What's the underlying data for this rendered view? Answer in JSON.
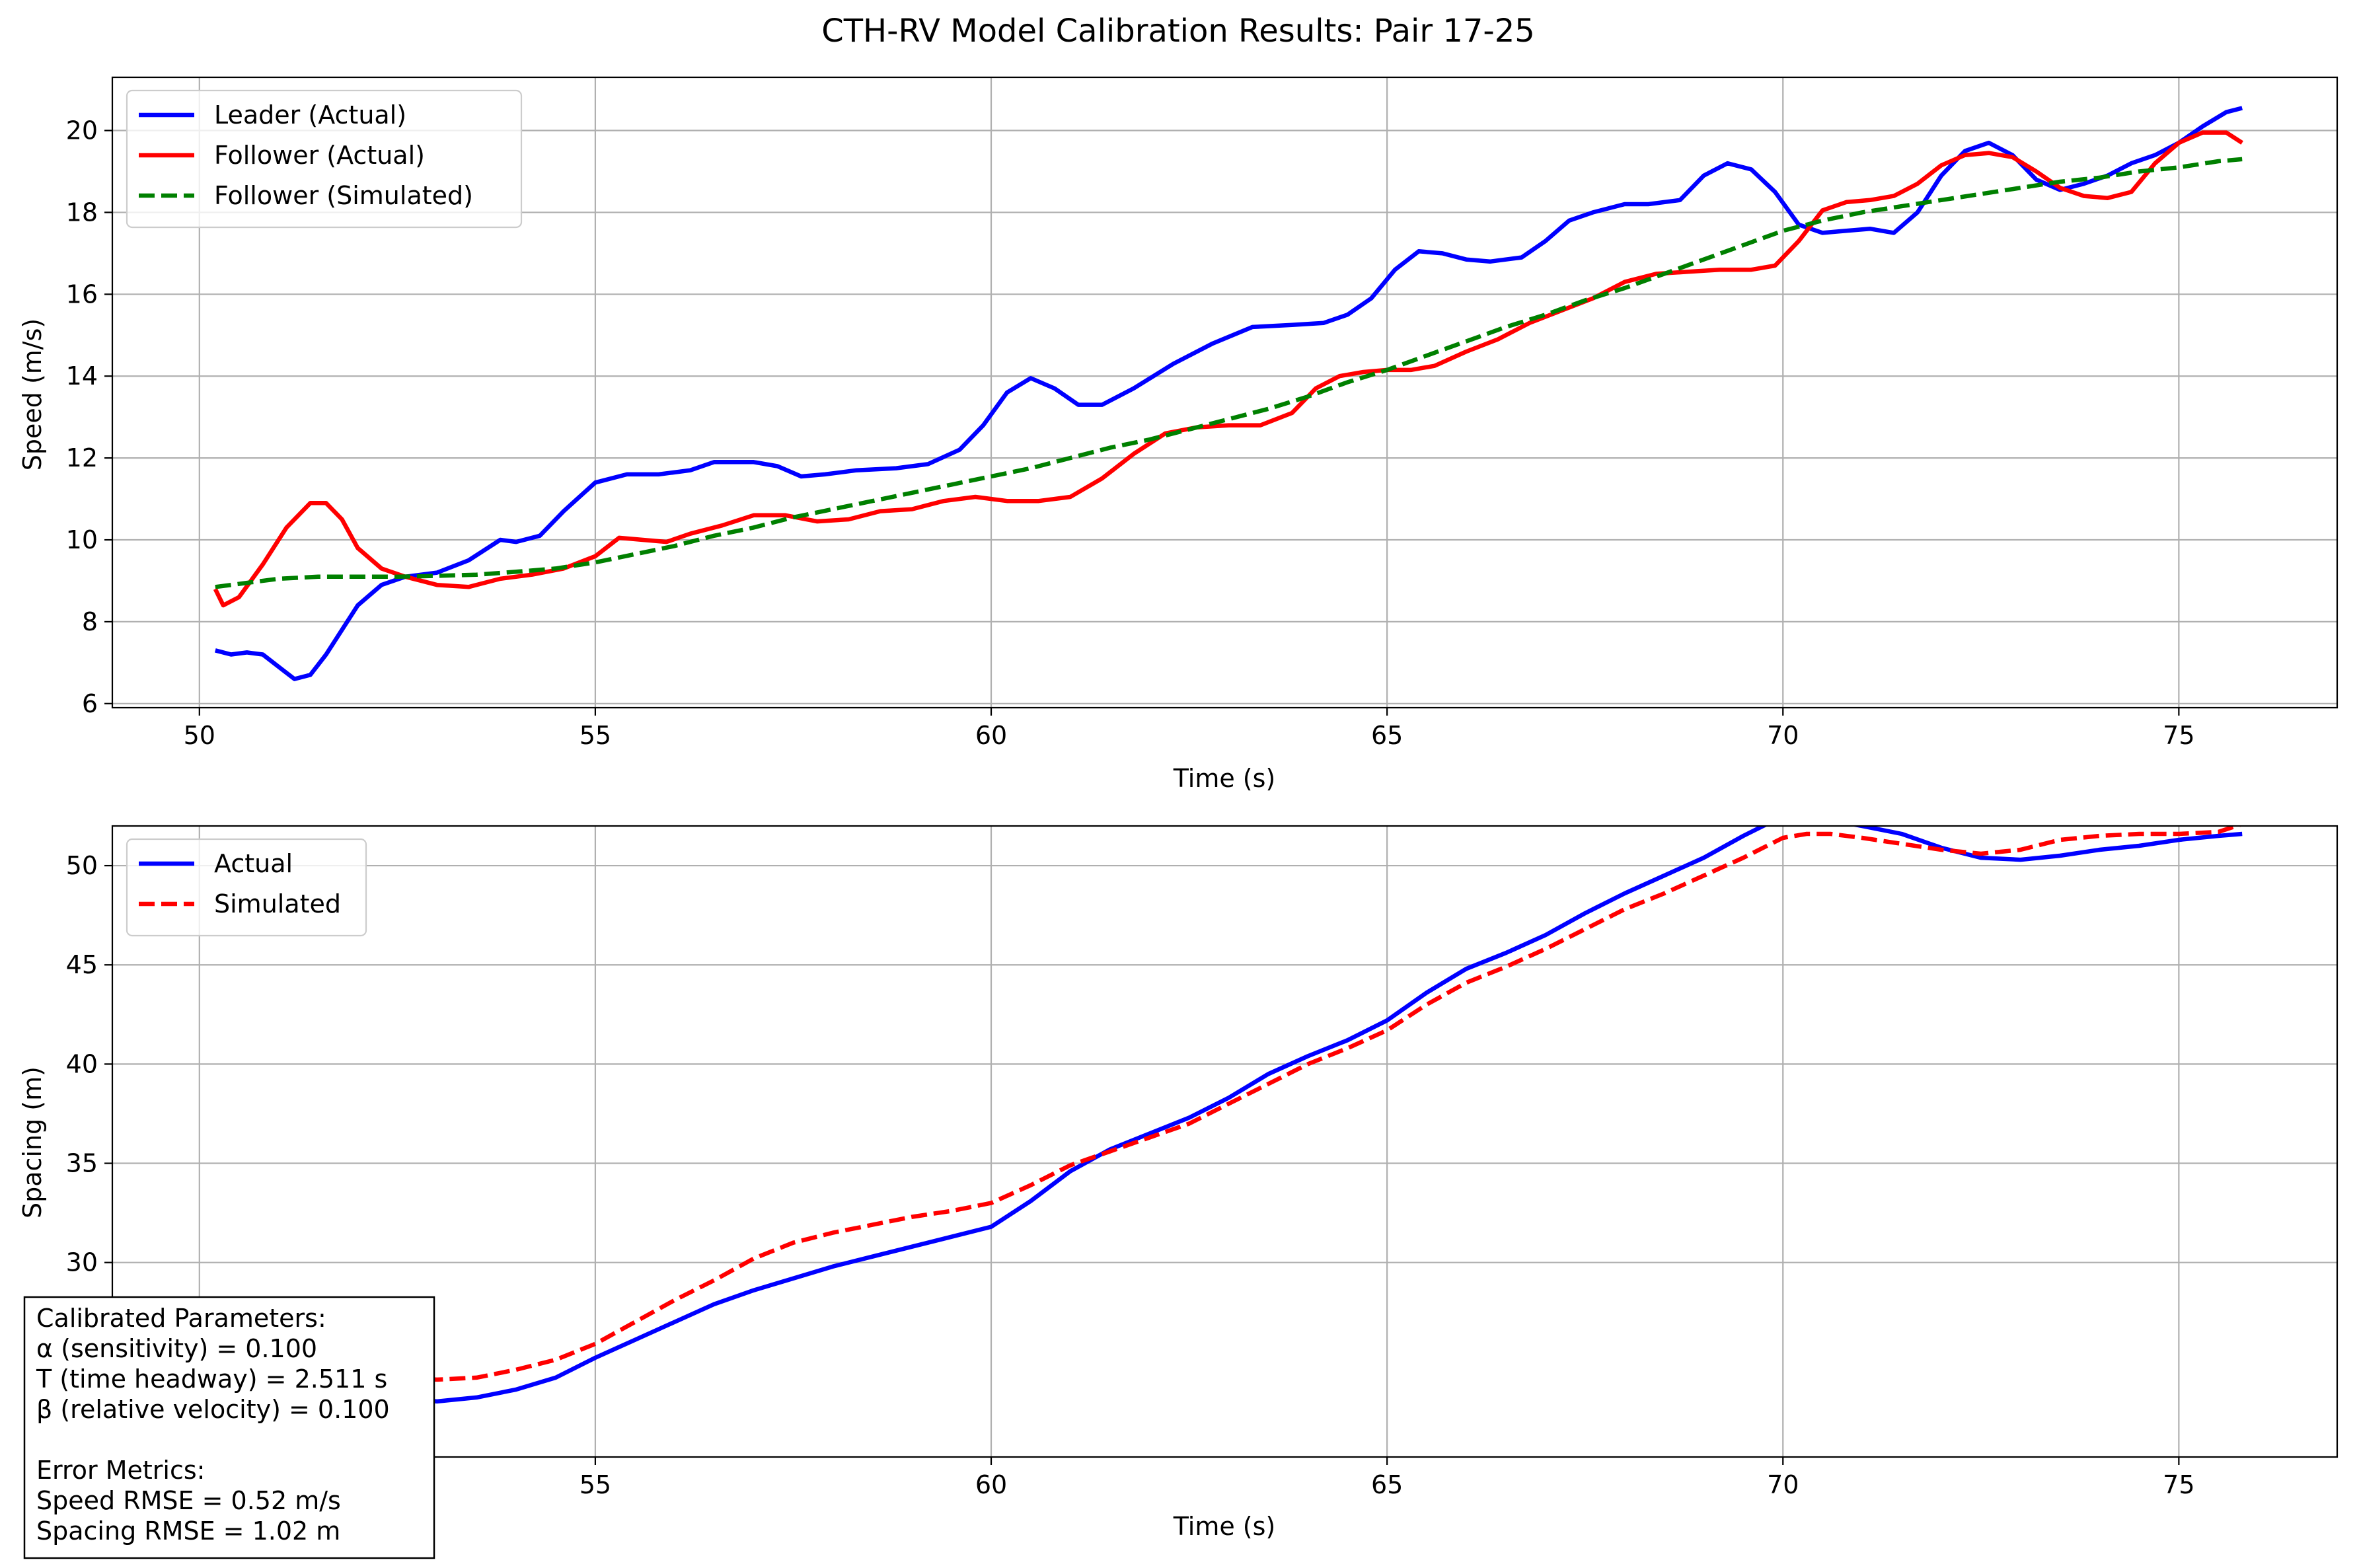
{
  "figure": {
    "title": "CTH-RV Model Calibration Results: Pair 17-25"
  },
  "colors": {
    "leader": "#0000ff",
    "follower": "#ff0000",
    "simulated": "#008000",
    "grid": "#b0b0b0"
  },
  "chart_data": [
    {
      "type": "line",
      "xlabel": "Time (s)",
      "ylabel": "Speed (m/s)",
      "xlim": [
        48.9,
        77.0
      ],
      "ylim": [
        5.9,
        21.3
      ],
      "xticks": [
        50,
        55,
        60,
        65,
        70,
        75
      ],
      "yticks": [
        6,
        8,
        10,
        12,
        14,
        16,
        18,
        20
      ],
      "grid": true,
      "legend_position": "upper left",
      "series": [
        {
          "name": "Leader (Actual)",
          "color": "#0000ff",
          "style": "solid",
          "x": [
            50.2,
            50.4,
            50.6,
            50.8,
            51.0,
            51.2,
            51.4,
            51.6,
            51.8,
            52.0,
            52.3,
            52.6,
            53.0,
            53.4,
            53.8,
            54.0,
            54.3,
            54.6,
            55.0,
            55.4,
            55.8,
            56.2,
            56.5,
            57.0,
            57.3,
            57.6,
            57.9,
            58.3,
            58.8,
            59.2,
            59.6,
            59.9,
            60.2,
            60.5,
            60.8,
            61.1,
            61.4,
            61.8,
            62.3,
            62.8,
            63.3,
            63.8,
            64.2,
            64.5,
            64.8,
            65.1,
            65.4,
            65.7,
            66.0,
            66.3,
            66.7,
            67.0,
            67.3,
            67.6,
            68.0,
            68.3,
            68.7,
            69.0,
            69.3,
            69.6,
            69.9,
            70.2,
            70.5,
            70.8,
            71.1,
            71.4,
            71.7,
            72.0,
            72.3,
            72.6,
            72.9,
            73.2,
            73.5,
            73.8,
            74.1,
            74.4,
            74.7,
            75.0,
            75.3,
            75.6,
            75.8
          ],
          "values": [
            7.3,
            7.2,
            7.25,
            7.2,
            6.9,
            6.6,
            6.7,
            7.2,
            7.8,
            8.4,
            8.9,
            9.1,
            9.2,
            9.5,
            10.0,
            9.95,
            10.1,
            10.7,
            11.4,
            11.6,
            11.6,
            11.7,
            11.9,
            11.9,
            11.8,
            11.55,
            11.6,
            11.7,
            11.75,
            11.85,
            12.2,
            12.8,
            13.6,
            13.95,
            13.7,
            13.3,
            13.3,
            13.7,
            14.3,
            14.8,
            15.2,
            15.25,
            15.3,
            15.5,
            15.9,
            16.6,
            17.05,
            17.0,
            16.85,
            16.8,
            16.9,
            17.3,
            17.8,
            18.0,
            18.2,
            18.2,
            18.3,
            18.9,
            19.2,
            19.05,
            18.5,
            17.7,
            17.5,
            17.55,
            17.6,
            17.5,
            18.0,
            18.9,
            19.5,
            19.7,
            19.4,
            18.8,
            18.55,
            18.7,
            18.9,
            19.2,
            19.4,
            19.7,
            20.1,
            20.45,
            20.55
          ]
        },
        {
          "name": "Follower (Actual)",
          "color": "#ff0000",
          "style": "solid",
          "x": [
            50.2,
            50.3,
            50.5,
            50.8,
            51.1,
            51.4,
            51.6,
            51.8,
            52.0,
            52.3,
            52.6,
            53.0,
            53.4,
            53.8,
            54.2,
            54.6,
            55.0,
            55.3,
            55.6,
            55.9,
            56.2,
            56.6,
            57.0,
            57.4,
            57.8,
            58.2,
            58.6,
            59.0,
            59.4,
            59.8,
            60.2,
            60.6,
            61.0,
            61.4,
            61.8,
            62.2,
            62.6,
            63.0,
            63.4,
            63.8,
            64.1,
            64.4,
            64.7,
            65.0,
            65.3,
            65.6,
            66.0,
            66.4,
            66.8,
            67.2,
            67.6,
            68.0,
            68.4,
            68.8,
            69.2,
            69.6,
            69.9,
            70.2,
            70.5,
            70.8,
            71.1,
            71.4,
            71.7,
            72.0,
            72.3,
            72.6,
            72.9,
            73.2,
            73.5,
            73.8,
            74.1,
            74.4,
            74.7,
            75.0,
            75.3,
            75.6,
            75.8
          ],
          "values": [
            8.8,
            8.4,
            8.6,
            9.4,
            10.3,
            10.9,
            10.9,
            10.5,
            9.8,
            9.3,
            9.1,
            8.9,
            8.85,
            9.05,
            9.15,
            9.3,
            9.6,
            10.05,
            10.0,
            9.95,
            10.15,
            10.35,
            10.6,
            10.6,
            10.45,
            10.5,
            10.7,
            10.75,
            10.95,
            11.05,
            10.95,
            10.95,
            11.05,
            11.5,
            12.1,
            12.6,
            12.75,
            12.8,
            12.8,
            13.1,
            13.7,
            14.0,
            14.1,
            14.15,
            14.15,
            14.25,
            14.6,
            14.9,
            15.3,
            15.6,
            15.9,
            16.3,
            16.5,
            16.55,
            16.6,
            16.6,
            16.7,
            17.3,
            18.05,
            18.25,
            18.3,
            18.4,
            18.7,
            19.15,
            19.4,
            19.45,
            19.35,
            19.0,
            18.6,
            18.4,
            18.35,
            18.5,
            19.2,
            19.7,
            19.95,
            19.95,
            19.7
          ]
        },
        {
          "name": "Follower (Simulated)",
          "color": "#008000",
          "style": "dashed",
          "x": [
            50.2,
            50.6,
            51.0,
            51.5,
            52.0,
            52.5,
            53.0,
            53.5,
            54.0,
            54.5,
            55.0,
            55.5,
            56.0,
            56.5,
            57.0,
            57.5,
            58.0,
            58.5,
            59.0,
            59.5,
            60.0,
            60.5,
            61.0,
            61.5,
            62.0,
            62.5,
            63.0,
            63.5,
            64.0,
            64.5,
            65.0,
            65.5,
            66.0,
            66.5,
            67.0,
            67.5,
            68.0,
            68.5,
            69.0,
            69.5,
            70.0,
            70.5,
            71.0,
            71.5,
            72.0,
            72.5,
            73.0,
            73.5,
            74.0,
            74.5,
            75.0,
            75.5,
            75.8
          ],
          "values": [
            8.85,
            8.95,
            9.05,
            9.1,
            9.1,
            9.1,
            9.12,
            9.15,
            9.22,
            9.3,
            9.45,
            9.65,
            9.85,
            10.1,
            10.3,
            10.55,
            10.75,
            10.95,
            11.15,
            11.35,
            11.55,
            11.75,
            12.0,
            12.25,
            12.45,
            12.7,
            12.95,
            13.2,
            13.5,
            13.85,
            14.15,
            14.5,
            14.85,
            15.2,
            15.5,
            15.85,
            16.15,
            16.5,
            16.85,
            17.2,
            17.55,
            17.8,
            18.0,
            18.15,
            18.3,
            18.45,
            18.6,
            18.75,
            18.85,
            19.0,
            19.1,
            19.25,
            19.3
          ]
        }
      ]
    },
    {
      "type": "line",
      "xlabel": "Time (s)",
      "ylabel": "Spacing (m)",
      "xlim": [
        48.9,
        77.0
      ],
      "ylim": [
        20.2,
        52.0
      ],
      "xticks": [
        50,
        55,
        60,
        65,
        70,
        75
      ],
      "yticks": [
        30,
        35,
        40,
        45,
        50
      ],
      "grid": true,
      "legend_position": "upper left",
      "series": [
        {
          "name": "Actual",
          "color": "#0000ff",
          "style": "solid",
          "x": [
            50.2,
            50.6,
            51.0,
            51.5,
            52.0,
            52.5,
            53.0,
            53.5,
            54.0,
            54.5,
            55.0,
            55.5,
            56.0,
            56.5,
            57.0,
            57.5,
            58.0,
            58.5,
            59.0,
            59.5,
            60.0,
            60.5,
            61.0,
            61.5,
            62.0,
            62.5,
            63.0,
            63.5,
            64.0,
            64.5,
            65.0,
            65.5,
            66.0,
            66.5,
            67.0,
            67.5,
            68.0,
            68.5,
            69.0,
            69.5,
            69.8,
            70.0,
            70.3,
            70.6,
            71.0,
            71.5,
            72.0,
            72.5,
            73.0,
            73.5,
            74.0,
            74.5,
            75.0,
            75.5,
            75.8
          ],
          "values": [
            27.6,
            27.0,
            26.0,
            24.8,
            23.8,
            23.2,
            23.0,
            23.2,
            23.6,
            24.2,
            25.2,
            26.1,
            27.0,
            27.9,
            28.6,
            29.2,
            29.8,
            30.3,
            30.8,
            31.3,
            31.8,
            33.1,
            34.6,
            35.7,
            36.5,
            37.3,
            38.3,
            39.5,
            40.4,
            41.2,
            42.2,
            43.6,
            44.8,
            45.6,
            46.5,
            47.6,
            48.6,
            49.5,
            50.4,
            51.5,
            52.1,
            52.3,
            52.4,
            52.3,
            52.0,
            51.6,
            50.9,
            50.4,
            50.3,
            50.5,
            50.8,
            51.0,
            51.3,
            51.5,
            51.6
          ]
        },
        {
          "name": "Simulated",
          "color": "#ff0000",
          "style": "dashed",
          "x": [
            50.2,
            50.6,
            51.0,
            51.5,
            52.0,
            52.5,
            53.0,
            53.5,
            54.0,
            54.5,
            55.0,
            55.5,
            56.0,
            56.5,
            57.0,
            57.5,
            58.0,
            58.5,
            59.0,
            59.5,
            60.0,
            60.5,
            61.0,
            61.5,
            62.0,
            62.5,
            63.0,
            63.5,
            64.0,
            64.5,
            65.0,
            65.5,
            66.0,
            66.5,
            67.0,
            67.5,
            68.0,
            68.5,
            69.0,
            69.5,
            69.8,
            70.0,
            70.3,
            70.6,
            71.0,
            71.5,
            72.0,
            72.5,
            73.0,
            73.5,
            74.0,
            74.5,
            75.0,
            75.5,
            75.8
          ],
          "values": [
            27.6,
            27.3,
            26.7,
            25.8,
            24.9,
            24.2,
            24.1,
            24.2,
            24.6,
            25.1,
            25.9,
            27.0,
            28.1,
            29.1,
            30.2,
            31.0,
            31.5,
            31.9,
            32.3,
            32.6,
            33.0,
            33.9,
            34.9,
            35.6,
            36.3,
            37.0,
            38.0,
            39.0,
            40.0,
            40.8,
            41.7,
            43.0,
            44.1,
            44.9,
            45.8,
            46.8,
            47.8,
            48.6,
            49.5,
            50.4,
            51.0,
            51.4,
            51.6,
            51.6,
            51.4,
            51.1,
            50.8,
            50.6,
            50.8,
            51.3,
            51.5,
            51.6,
            51.6,
            51.7,
            52.1
          ]
        }
      ]
    }
  ],
  "parameters_box": {
    "lines": [
      "Calibrated Parameters:",
      "α (sensitivity) = 0.100",
      "T (time headway) = 2.511 s",
      "β (relative velocity) = 0.100",
      "",
      "Error Metrics:",
      "Speed RMSE = 0.52 m/s",
      "Spacing RMSE = 1.02 m"
    ]
  }
}
